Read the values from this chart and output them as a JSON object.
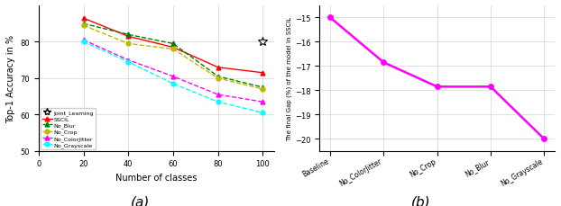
{
  "subplot_a": {
    "x": [
      20,
      40,
      60,
      80,
      100
    ],
    "joint_learning": {
      "x": [
        100
      ],
      "y": [
        80.0
      ],
      "color": "black",
      "marker": "*",
      "label": "Joint_Learning",
      "markersize": 7
    },
    "sscil": {
      "y": [
        86.5,
        81.5,
        78.5,
        73.0,
        71.5
      ],
      "color": "red",
      "marker": "^",
      "label": "SSCIL",
      "linestyle": "-"
    },
    "no_blur": {
      "y": [
        85.0,
        82.0,
        79.5,
        70.5,
        67.5
      ],
      "color": "#008000",
      "marker": "^",
      "label": "No_Blur",
      "linestyle": "--"
    },
    "no_crop": {
      "y": [
        84.5,
        79.5,
        78.0,
        70.0,
        67.0
      ],
      "color": "#BBBB00",
      "marker": "o",
      "label": "No_Crop",
      "linestyle": "--"
    },
    "no_colorjitter": {
      "y": [
        80.5,
        75.0,
        70.5,
        65.5,
        63.5
      ],
      "color": "magenta",
      "marker": "^",
      "label": "No_ColorJitter",
      "linestyle": "--"
    },
    "no_grayscale": {
      "y": [
        80.0,
        74.5,
        68.5,
        63.5,
        60.5
      ],
      "color": "cyan",
      "marker": "o",
      "label": "No_Grayscale",
      "linestyle": "--"
    },
    "xlabel": "Number of classes",
    "ylabel": "Top-1 Accuracy in %",
    "xlim": [
      0,
      105
    ],
    "ylim": [
      50,
      90
    ],
    "yticks": [
      50,
      60,
      70,
      80
    ],
    "xticks": [
      0,
      20,
      40,
      60,
      80,
      100
    ],
    "label_a": "(a)"
  },
  "subplot_b": {
    "x_labels": [
      "Baseline",
      "No_ColorJitter",
      "No_Crop",
      "No_Blur",
      "No_Grayscale"
    ],
    "y": [
      -15.0,
      -16.85,
      -17.85,
      -17.85,
      -20.0
    ],
    "color": "magenta",
    "marker": "o",
    "ylabel": "The final Gap (%) of the model in SSCIL",
    "ylim": [
      -20.5,
      -14.5
    ],
    "yticks": [
      -15,
      -16,
      -17,
      -18,
      -19,
      -20
    ],
    "label_b": "(b)"
  }
}
